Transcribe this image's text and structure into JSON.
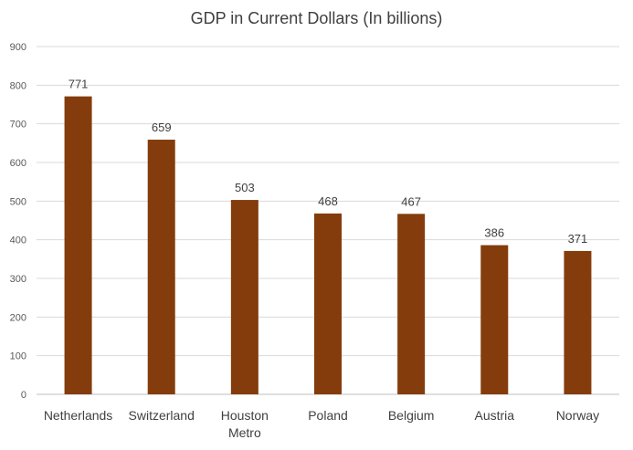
{
  "chart_data": {
    "type": "bar",
    "title": "GDP in Current Dollars (In billions)",
    "categories": [
      "Netherlands",
      "Switzerland",
      "Houston Metro",
      "Poland",
      "Belgium",
      "Austria",
      "Norway"
    ],
    "category_lines": [
      [
        "Netherlands"
      ],
      [
        "Switzerland"
      ],
      [
        "Houston",
        "Metro"
      ],
      [
        "Poland"
      ],
      [
        "Belgium"
      ],
      [
        "Austria"
      ],
      [
        "Norway"
      ]
    ],
    "values": [
      771,
      659,
      503,
      468,
      467,
      386,
      371
    ],
    "data_labels": [
      "771",
      "659",
      "503",
      "468",
      "467",
      "386",
      "371"
    ],
    "xlabel": "",
    "ylabel": "",
    "ylim": [
      0,
      900
    ],
    "yticks": [
      0,
      100,
      200,
      300,
      400,
      500,
      600,
      700,
      800,
      900
    ],
    "grid": true,
    "legend": "none",
    "bar_color": "#843C0C",
    "grid_color": "#D9D9D9",
    "text_color": "#404040",
    "tick_color": "#595959"
  }
}
